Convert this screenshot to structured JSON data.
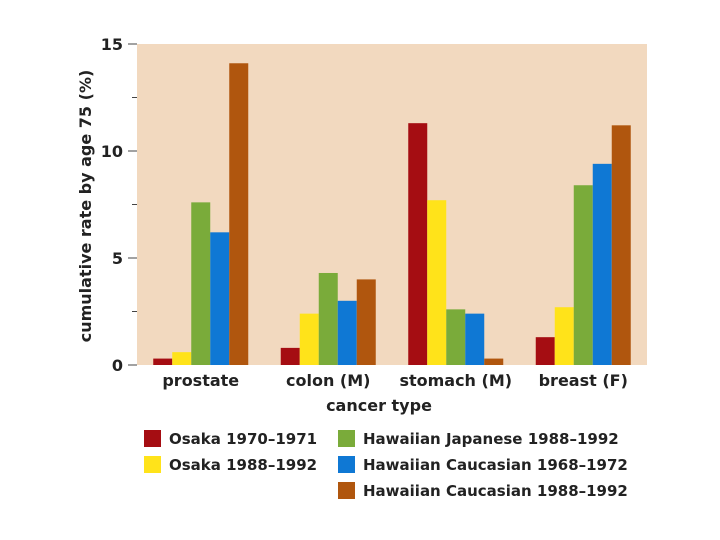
{
  "chart_data": {
    "type": "bar",
    "title": "",
    "xlabel": "cancer type",
    "ylabel": "cumulative rate by age 75 (%)",
    "ylim": [
      0,
      15
    ],
    "yticks": [
      0,
      5,
      10,
      15
    ],
    "categories": [
      "prostate",
      "colon (M)",
      "stomach (M)",
      "breast (F)"
    ],
    "series": [
      {
        "name": "Osaka 1970–1971",
        "color": "#a50d12",
        "values": [
          0.3,
          0.8,
          11.3,
          1.3
        ]
      },
      {
        "name": "Osaka 1988–1992",
        "color": "#ffe31a",
        "values": [
          0.6,
          2.4,
          7.7,
          2.7
        ]
      },
      {
        "name": "Hawaiian Japanese 1988–1992",
        "color": "#7aab3a",
        "values": [
          7.6,
          4.3,
          2.6,
          8.4
        ]
      },
      {
        "name": "Hawaiian Caucasian 1968–1972",
        "color": "#0f78d4",
        "values": [
          6.2,
          3.0,
          2.4,
          9.4
        ]
      },
      {
        "name": "Hawaiian Caucasian 1988–1992",
        "color": "#b0560e",
        "values": [
          14.1,
          4.0,
          0.3,
          11.2
        ]
      }
    ],
    "grid": false,
    "plot_background": "#f2d9bf",
    "legend_position": "bottom"
  }
}
